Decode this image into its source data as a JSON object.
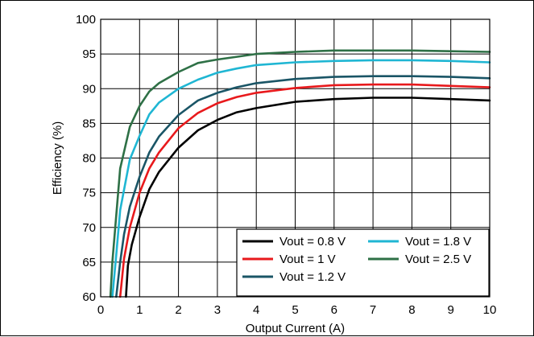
{
  "chart_data": {
    "type": "line",
    "title": "",
    "xlabel": "Output Current (A)",
    "ylabel": "Efficiency (%)",
    "xlim": [
      0,
      10
    ],
    "ylim": [
      60,
      100
    ],
    "xticks": [
      0,
      1,
      2,
      3,
      4,
      5,
      6,
      7,
      8,
      9,
      10
    ],
    "yticks": [
      60,
      65,
      70,
      75,
      80,
      85,
      90,
      95,
      100
    ],
    "grid": true,
    "legend_position": "bottom-right",
    "series": [
      {
        "name": "Vout = 0.8 V",
        "color": "#000000",
        "x": [
          0.65,
          0.7,
          0.8,
          1.0,
          1.25,
          1.5,
          2.0,
          2.5,
          3.0,
          3.5,
          4.0,
          5.0,
          6.0,
          7.0,
          7.5,
          8.0,
          9.0,
          10.0
        ],
        "y": [
          60,
          64.5,
          67.5,
          71.5,
          75.5,
          78.0,
          81.5,
          84.0,
          85.5,
          86.6,
          87.2,
          88.1,
          88.5,
          88.7,
          88.7,
          88.7,
          88.5,
          88.3
        ]
      },
      {
        "name": "Vout = 1 V",
        "color": "#e8191c",
        "x": [
          0.5,
          0.6,
          0.75,
          1.0,
          1.25,
          1.5,
          2.0,
          2.5,
          3.0,
          3.5,
          4.0,
          5.0,
          6.0,
          7.0,
          8.0,
          9.0,
          10.0
        ],
        "y": [
          60,
          65.5,
          70.0,
          75.0,
          78.5,
          80.8,
          84.3,
          86.5,
          87.9,
          88.8,
          89.4,
          90.1,
          90.5,
          90.6,
          90.6,
          90.4,
          90.2
        ]
      },
      {
        "name": "Vout = 1.2 V",
        "color": "#1a5566",
        "x": [
          0.4,
          0.5,
          0.6,
          0.75,
          1.0,
          1.25,
          1.5,
          2.0,
          2.5,
          3.0,
          3.5,
          4.0,
          5.0,
          6.0,
          7.0,
          8.0,
          9.0,
          10.0
        ],
        "y": [
          60,
          65.0,
          69.0,
          73.0,
          77.3,
          80.8,
          83.1,
          86.2,
          88.3,
          89.4,
          90.2,
          90.8,
          91.4,
          91.7,
          91.8,
          91.8,
          91.7,
          91.5
        ]
      },
      {
        "name": "Vout = 1.8 V",
        "color": "#1fb6d3",
        "x": [
          0.3,
          0.4,
          0.5,
          0.75,
          1.0,
          1.25,
          1.5,
          2.0,
          2.5,
          3.0,
          3.5,
          4.0,
          5.0,
          6.0,
          7.0,
          8.0,
          9.0,
          10.0
        ],
        "y": [
          60,
          66.0,
          72.5,
          79.8,
          83.2,
          86.3,
          88.0,
          90.0,
          91.3,
          92.3,
          92.9,
          93.4,
          93.8,
          94.0,
          94.1,
          94.1,
          94.0,
          93.8
        ]
      },
      {
        "name": "Vout = 2.5 V",
        "color": "#2e7046",
        "x": [
          0.25,
          0.3,
          0.5,
          0.75,
          1.0,
          1.25,
          1.5,
          2.0,
          2.5,
          3.0,
          3.5,
          4.0,
          5.0,
          6.0,
          7.0,
          8.0,
          9.0,
          10.0
        ],
        "y": [
          60,
          65.0,
          78.5,
          84.5,
          87.5,
          89.6,
          90.8,
          92.4,
          93.7,
          94.2,
          94.6,
          95.0,
          95.3,
          95.5,
          95.5,
          95.5,
          95.4,
          95.3
        ]
      }
    ]
  }
}
